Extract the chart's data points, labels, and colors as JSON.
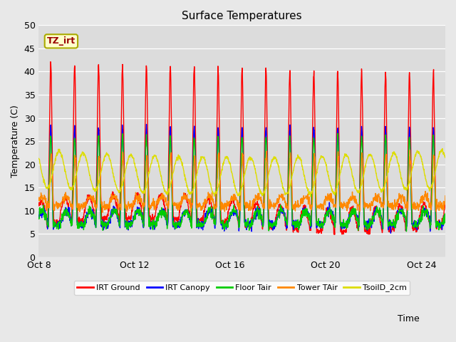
{
  "title": "Surface Temperatures",
  "xlabel": "Time",
  "ylabel": "Temperature (C)",
  "ylim": [
    0,
    50
  ],
  "yticks": [
    0,
    5,
    10,
    15,
    20,
    25,
    30,
    35,
    40,
    45,
    50
  ],
  "xtick_labels": [
    "Oct 8",
    "Oct 12",
    "Oct 16",
    "Oct 20",
    "Oct 24"
  ],
  "xtick_positions": [
    0,
    4,
    8,
    12,
    16
  ],
  "n_days": 17,
  "fig_bg_color": "#e8e8e8",
  "plot_bg_color": "#dcdcdc",
  "grid_color": "#ffffff",
  "series": [
    {
      "label": "IRT Ground",
      "color": "#ff0000"
    },
    {
      "label": "IRT Canopy",
      "color": "#0000ff"
    },
    {
      "label": "Floor Tair",
      "color": "#00cc00"
    },
    {
      "label": "Tower TAir",
      "color": "#ff8800"
    },
    {
      "label": "TsoilD_2cm",
      "color": "#dddd00"
    }
  ],
  "annotation_text": "TZ_irt",
  "annotation_color": "#990000",
  "annotation_bg": "#ffffcc",
  "annotation_edge": "#aaaa00"
}
